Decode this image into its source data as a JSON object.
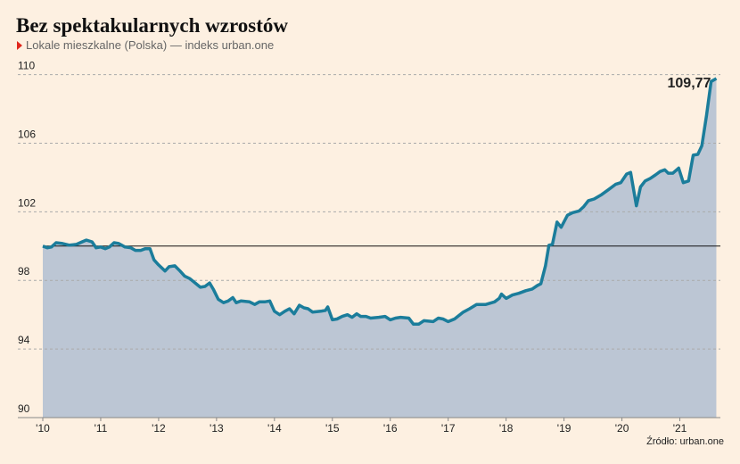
{
  "chart_data": {
    "type": "line",
    "title": "Bez spektakularnych wzrostów",
    "subtitle": "Lokale mieszkalne (Polska) — indeks urban.one",
    "source": "Źródło: urban.one",
    "color": "#1b7d9b",
    "area_color": "#bcc6d4",
    "marker_color": "#e0261c",
    "reference_line": 100,
    "fill_area": true,
    "grid": true,
    "xlim": [
      2010,
      2021.7
    ],
    "ylim": [
      90,
      110.5
    ],
    "xticks": [
      {
        "value": 2010,
        "label": "'10"
      },
      {
        "value": 2011,
        "label": "'11"
      },
      {
        "value": 2012,
        "label": "'12"
      },
      {
        "value": 2013,
        "label": "'13"
      },
      {
        "value": 2014,
        "label": "'14"
      },
      {
        "value": 2015,
        "label": "'15"
      },
      {
        "value": 2016,
        "label": "'16"
      },
      {
        "value": 2017,
        "label": "'17"
      },
      {
        "value": 2018,
        "label": "'18"
      },
      {
        "value": 2019,
        "label": "'19"
      },
      {
        "value": 2020,
        "label": "'20"
      },
      {
        "value": 2021,
        "label": "'21"
      }
    ],
    "yticks": [
      90,
      94,
      98,
      102,
      106,
      110
    ],
    "x": [
      2010.0,
      2010.08,
      2010.15,
      2010.23,
      2010.34,
      2010.46,
      2010.58,
      2010.68,
      2010.75,
      2010.85,
      2010.92,
      2011.0,
      2011.08,
      2011.15,
      2011.23,
      2011.31,
      2011.42,
      2011.52,
      2011.6,
      2011.69,
      2011.77,
      2011.85,
      2011.92,
      2012.0,
      2012.11,
      2012.18,
      2012.28,
      2012.37,
      2012.45,
      2012.54,
      2012.65,
      2012.72,
      2012.8,
      2012.88,
      2012.95,
      2013.03,
      2013.12,
      2013.2,
      2013.28,
      2013.34,
      2013.42,
      2013.57,
      2013.66,
      2013.74,
      2013.83,
      2013.92,
      2014.0,
      2014.09,
      2014.18,
      2014.26,
      2014.34,
      2014.43,
      2014.51,
      2014.58,
      2014.66,
      2014.8,
      2014.88,
      2014.92,
      2015.0,
      2015.08,
      2015.17,
      2015.26,
      2015.34,
      2015.42,
      2015.49,
      2015.58,
      2015.66,
      2015.8,
      2015.91,
      2016.0,
      2016.09,
      2016.18,
      2016.32,
      2016.4,
      2016.49,
      2016.58,
      2016.74,
      2016.83,
      2016.91,
      2017.0,
      2017.11,
      2017.26,
      2017.37,
      2017.49,
      2017.65,
      2017.8,
      2017.88,
      2017.92,
      2018.0,
      2018.11,
      2018.22,
      2018.34,
      2018.45,
      2018.54,
      2018.6,
      2018.68,
      2018.74,
      2018.8,
      2018.88,
      2018.95,
      2019.06,
      2019.15,
      2019.26,
      2019.34,
      2019.42,
      2019.52,
      2019.65,
      2019.77,
      2019.89,
      2019.98,
      2020.08,
      2020.15,
      2020.25,
      2020.32,
      2020.4,
      2020.49,
      2020.58,
      2020.66,
      2020.74,
      2020.8,
      2020.88,
      2020.98,
      2021.06,
      2021.15,
      2021.23,
      2021.31,
      2021.38,
      2021.46,
      2021.54,
      2021.63
    ],
    "values": [
      100.0,
      99.9,
      99.95,
      100.2,
      100.15,
      100.05,
      100.1,
      100.25,
      100.35,
      100.25,
      99.9,
      99.95,
      99.85,
      99.95,
      100.2,
      100.15,
      99.95,
      99.9,
      99.75,
      99.75,
      99.85,
      99.85,
      99.2,
      98.9,
      98.55,
      98.8,
      98.85,
      98.55,
      98.25,
      98.1,
      97.8,
      97.6,
      97.65,
      97.85,
      97.45,
      96.9,
      96.7,
      96.8,
      97.0,
      96.7,
      96.8,
      96.75,
      96.6,
      96.75,
      96.75,
      96.8,
      96.2,
      96.0,
      96.2,
      96.35,
      96.05,
      96.55,
      96.4,
      96.35,
      96.15,
      96.2,
      96.25,
      96.45,
      95.7,
      95.75,
      95.9,
      96.0,
      95.85,
      96.05,
      95.9,
      95.9,
      95.8,
      95.85,
      95.9,
      95.7,
      95.8,
      95.85,
      95.8,
      95.45,
      95.45,
      95.65,
      95.6,
      95.8,
      95.75,
      95.6,
      95.75,
      96.15,
      96.35,
      96.6,
      96.6,
      96.75,
      96.95,
      97.2,
      96.95,
      97.15,
      97.25,
      97.4,
      97.5,
      97.7,
      97.8,
      98.85,
      100.05,
      100.1,
      101.4,
      101.1,
      101.8,
      101.95,
      102.05,
      102.3,
      102.65,
      102.75,
      103.0,
      103.3,
      103.6,
      103.7,
      104.2,
      104.3,
      102.35,
      103.45,
      103.8,
      103.95,
      104.15,
      104.35,
      104.45,
      104.25,
      104.25,
      104.55,
      103.7,
      103.8,
      105.3,
      105.35,
      105.85,
      107.6,
      109.6,
      109.77
    ],
    "value_labels": [
      null,
      null,
      null,
      null,
      null,
      null,
      null,
      null,
      null,
      null,
      null,
      null,
      null,
      null,
      null,
      null,
      null,
      null,
      null,
      null,
      null,
      null,
      null,
      null,
      null,
      null,
      null,
      null,
      null,
      null,
      null,
      null,
      null,
      null,
      null,
      null,
      null,
      null,
      null,
      null,
      null,
      null,
      null,
      null,
      null,
      null,
      null,
      null,
      null,
      null,
      null,
      null,
      null,
      null,
      null,
      null,
      null,
      null,
      null,
      null,
      null,
      null,
      null,
      null,
      null,
      null,
      null,
      null,
      null,
      null,
      null,
      null,
      null,
      null,
      null,
      null,
      null,
      null,
      null,
      null,
      null,
      null,
      null,
      null,
      null,
      null,
      null,
      null,
      null,
      null,
      null,
      null,
      null,
      null,
      null,
      null,
      null,
      null,
      null,
      null,
      null,
      null,
      null,
      null,
      null,
      null,
      null,
      null,
      null,
      null,
      null,
      null,
      null,
      null,
      null,
      null,
      null,
      null,
      null,
      null,
      null,
      null,
      null,
      null,
      null,
      null,
      null,
      null,
      null,
      "109,77"
    ]
  }
}
